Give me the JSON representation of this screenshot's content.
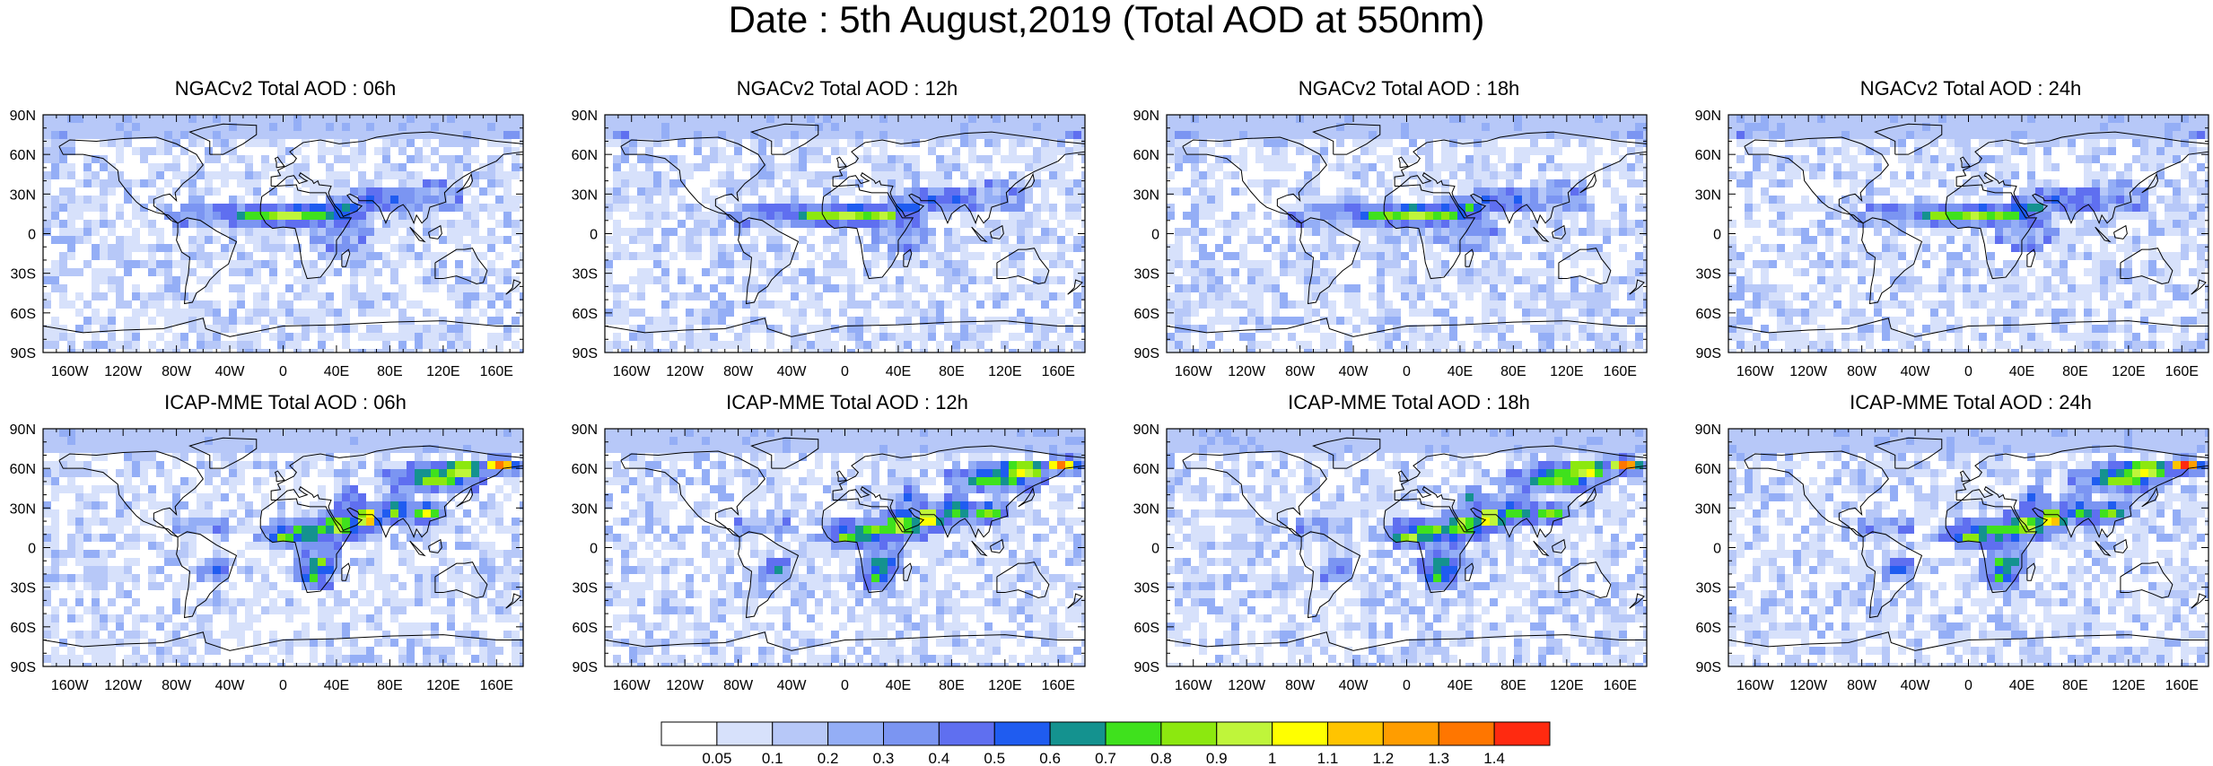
{
  "title": "Date : 5th August,2019 (Total AOD at 550nm)",
  "panels": [
    {
      "title": "NGACv2 Total AOD : 06h",
      "model": "ngac"
    },
    {
      "title": "NGACv2 Total AOD : 12h",
      "model": "ngac"
    },
    {
      "title": "NGACv2 Total AOD : 18h",
      "model": "ngac"
    },
    {
      "title": "NGACv2 Total AOD : 24h",
      "model": "ngac"
    },
    {
      "title": "ICAP-MME Total AOD : 06h",
      "model": "icap"
    },
    {
      "title": "ICAP-MME Total AOD : 12h",
      "model": "icap"
    },
    {
      "title": "ICAP-MME Total AOD : 18h",
      "model": "icap"
    },
    {
      "title": "ICAP-MME Total AOD : 24h",
      "model": "icap"
    }
  ],
  "lat_ticks": [
    "90N",
    "60N",
    "30N",
    "0",
    "30S",
    "60S",
    "90S"
  ],
  "lon_ticks": [
    "160W",
    "120W",
    "80W",
    "40W",
    "0",
    "40E",
    "80E",
    "120E",
    "160E"
  ],
  "lon_tick_values": [
    -160,
    -120,
    -80,
    -40,
    0,
    40,
    80,
    120,
    160
  ],
  "lat_tick_values": [
    90,
    60,
    30,
    0,
    -30,
    -60,
    -90
  ],
  "colorbar": {
    "labels": [
      "0.05",
      "0.1",
      "0.2",
      "0.3",
      "0.4",
      "0.5",
      "0.6",
      "0.7",
      "0.8",
      "0.9",
      "1",
      "1.1",
      "1.2",
      "1.3",
      "1.4"
    ],
    "colors": [
      "#ffffff",
      "#d7e1fb",
      "#b7c8f8",
      "#94aef6",
      "#7b95f2",
      "#5f6ff0",
      "#1f5cf0",
      "#14928f",
      "#3fe11d",
      "#8ce80f",
      "#bff53a",
      "#ffff00",
      "#ffc400",
      "#ff9d00",
      "#ff7600",
      "#ff2a10"
    ]
  },
  "colors": {
    "land_outline": "#000000",
    "background": "#ffffff"
  }
}
